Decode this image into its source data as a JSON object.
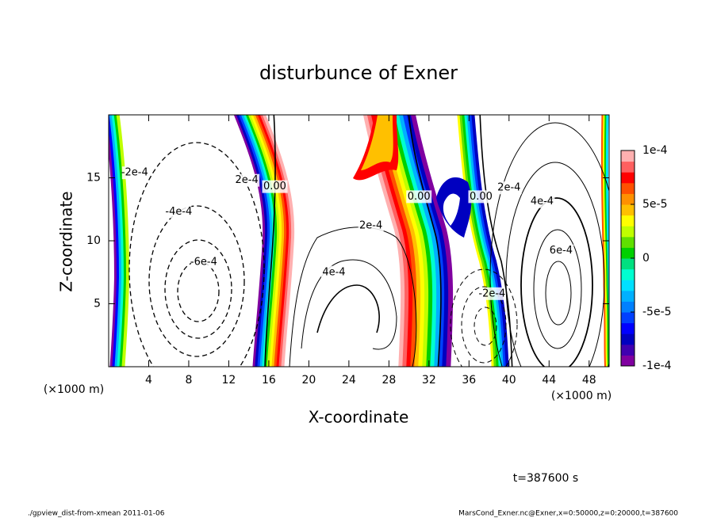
{
  "chart_data": {
    "type": "contour",
    "title": "disturbunce of Exner",
    "x_label": "X-coordinate",
    "y_label": "Z-coordinate",
    "x_unit": "(×1000 m)",
    "y_unit": "(×1000 m)",
    "xlim": [
      0,
      50
    ],
    "ylim": [
      0,
      20
    ],
    "xticks": [
      4,
      8,
      12,
      16,
      20,
      24,
      28,
      32,
      36,
      40,
      44,
      48
    ],
    "yticks": [
      5,
      10,
      15
    ],
    "colorbar": {
      "lim": [
        -0.0001,
        0.0001
      ],
      "colors": [
        "#8000a0",
        "#4000b0",
        "#0000c0",
        "#0000ff",
        "#0040ff",
        "#0080ff",
        "#00b0ff",
        "#00e0ff",
        "#00ffd0",
        "#00e080",
        "#00d000",
        "#60e000",
        "#c0ff00",
        "#ffff00",
        "#ffc000",
        "#ff9000",
        "#ff5000",
        "#ff0000",
        "#ff6060",
        "#ffb0b0"
      ],
      "ticks": [
        {
          "value": 0.0001,
          "label": "1e-4"
        },
        {
          "value": 5e-05,
          "label": "5e-5"
        },
        0,
        {
          "value": -5e-05,
          "label": "-5e-5"
        },
        {
          "value": -0.0001,
          "label": "-1e-4"
        }
      ]
    },
    "contour_labels": [
      {
        "label": "-2e-4",
        "value": -0.0002,
        "x": 2.6,
        "y": 15.4
      },
      {
        "label": "-4e-4",
        "value": -0.0004,
        "x": 7,
        "y": 12.3
      },
      {
        "label": "-6e-4",
        "value": -0.0006,
        "x": 9.5,
        "y": 8.3
      },
      {
        "label": "2e-4",
        "value": 0.0002,
        "x": 13.8,
        "y": 14.8
      },
      {
        "label": "0.00",
        "value": 0,
        "x": 16.6,
        "y": 14.3
      },
      {
        "label": "2e-4",
        "value": 0.0002,
        "x": 26.2,
        "y": 11.2
      },
      {
        "label": "4e-4",
        "value": 0.0004,
        "x": 22.5,
        "y": 7.5
      },
      {
        "label": "0.00",
        "value": 0,
        "x": 31,
        "y": 13.5
      },
      {
        "label": "0.00",
        "value": 0,
        "x": 37.2,
        "y": 13.5
      },
      {
        "label": "-2e-4",
        "value": -0.0002,
        "x": 38.3,
        "y": 5.8
      },
      {
        "label": "2e-4",
        "value": 0.0002,
        "x": 40,
        "y": 14.2
      },
      {
        "label": "4e-4",
        "value": 0.0004,
        "x": 43.3,
        "y": 13.1
      },
      {
        "label": "6e-4",
        "value": 0.0006,
        "x": 45.2,
        "y": 9.2
      }
    ],
    "time_label": "t=387600 s",
    "footer_left": "./gpview_dist-from-xmean  2011-01-06",
    "footer_right": "MarsCond_Exner.nc@Exner,x=0:50000,z=0:20000,t=387600"
  }
}
